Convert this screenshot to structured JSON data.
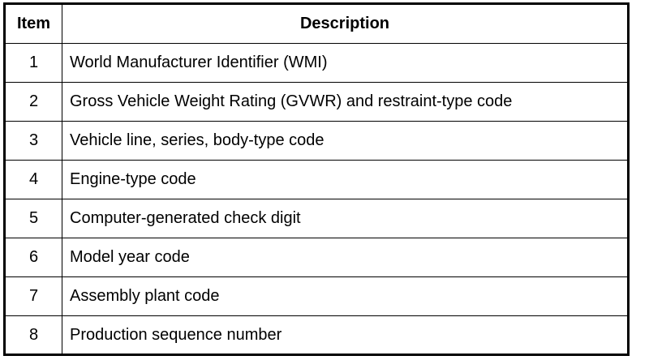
{
  "table": {
    "headers": [
      "Item",
      "Description"
    ],
    "rows": [
      {
        "item": "1",
        "description": "World Manufacturer Identifier (WMI)"
      },
      {
        "item": "2",
        "description": "Gross Vehicle Weight Rating (GVWR) and restraint-type code"
      },
      {
        "item": "3",
        "description": "Vehicle line, series, body-type code"
      },
      {
        "item": "4",
        "description": "Engine-type code"
      },
      {
        "item": "5",
        "description": "Computer-generated check digit"
      },
      {
        "item": "6",
        "description": "Model year code"
      },
      {
        "item": "7",
        "description": "Assembly plant code"
      },
      {
        "item": "8",
        "description": "Production sequence number"
      }
    ]
  }
}
